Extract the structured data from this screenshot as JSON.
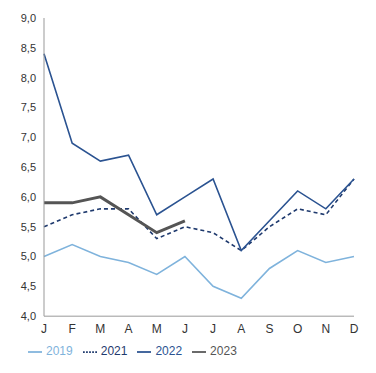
{
  "chart_data": {
    "type": "line",
    "categories": [
      "J",
      "F",
      "M",
      "A",
      "M",
      "J",
      "J",
      "A",
      "S",
      "O",
      "N",
      "D"
    ],
    "series": [
      {
        "name": "2019",
        "color": "#7fb3dc",
        "line_style": "solid",
        "values": [
          5.0,
          5.2,
          5.0,
          4.9,
          4.7,
          5.0,
          4.5,
          4.3,
          4.8,
          5.1,
          4.9,
          5.0
        ]
      },
      {
        "name": "2021",
        "color": "#1f3a6e",
        "line_style": "dashed",
        "values": [
          5.5,
          5.7,
          5.8,
          5.8,
          5.3,
          5.5,
          5.4,
          5.1,
          5.5,
          5.8,
          5.7,
          6.3
        ]
      },
      {
        "name": "2022",
        "color": "#2b5391",
        "line_style": "solid",
        "values": [
          8.4,
          6.9,
          6.6,
          6.7,
          5.7,
          6.0,
          6.3,
          5.1,
          5.6,
          6.1,
          5.8,
          6.3
        ]
      },
      {
        "name": "2023",
        "color": "#555555",
        "line_style": "solid",
        "values": [
          5.9,
          5.9,
          6.0,
          5.7,
          5.4,
          5.6,
          null,
          null,
          null,
          null,
          null,
          null
        ]
      }
    ],
    "ylim": [
      4.0,
      9.0
    ],
    "yticks": [
      {
        "value": 4.0,
        "label": "4,0"
      },
      {
        "value": 4.5,
        "label": "4,5"
      },
      {
        "value": 5.0,
        "label": "5,0"
      },
      {
        "value": 5.5,
        "label": "5,5"
      },
      {
        "value": 6.0,
        "label": "6,0"
      },
      {
        "value": 6.5,
        "label": "6,5"
      },
      {
        "value": 7.0,
        "label": "7,0"
      },
      {
        "value": 7.5,
        "label": "7,5"
      },
      {
        "value": 8.0,
        "label": "8,0"
      },
      {
        "value": 8.5,
        "label": "8,5"
      },
      {
        "value": 9.0,
        "label": "9,0"
      }
    ],
    "grid": false,
    "legend": "bottom"
  }
}
